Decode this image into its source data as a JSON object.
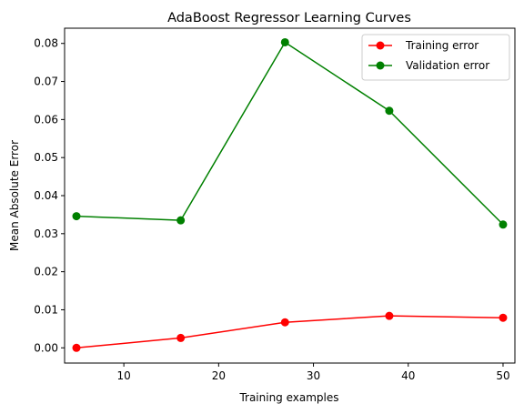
{
  "chart_data": {
    "type": "line",
    "title": "AdaBoost Regressor Learning Curves",
    "xlabel": "Training examples",
    "ylabel": "Mean Absolute Error",
    "xlim": [
      3.75,
      51.25
    ],
    "ylim": [
      -0.004,
      0.084
    ],
    "xticks": [
      10,
      20,
      30,
      40,
      50
    ],
    "yticks": [
      0.0,
      0.01,
      0.02,
      0.03,
      0.04,
      0.05,
      0.06,
      0.07,
      0.08
    ],
    "ytick_labels": [
      "0.00",
      "0.01",
      "0.02",
      "0.03",
      "0.04",
      "0.05",
      "0.06",
      "0.07",
      "0.08"
    ],
    "x": [
      5,
      16,
      27,
      38,
      50
    ],
    "grid": false,
    "legend_position": "top-right",
    "series": [
      {
        "name": "Training error",
        "color": "#ff0000",
        "marker": "circle",
        "values": [
          0.0,
          0.0026,
          0.0067,
          0.0084,
          0.0079
        ]
      },
      {
        "name": "Validation error",
        "color": "#008000",
        "marker": "circle",
        "values": [
          0.0346,
          0.0335,
          0.0803,
          0.0623,
          0.0324
        ]
      }
    ]
  }
}
